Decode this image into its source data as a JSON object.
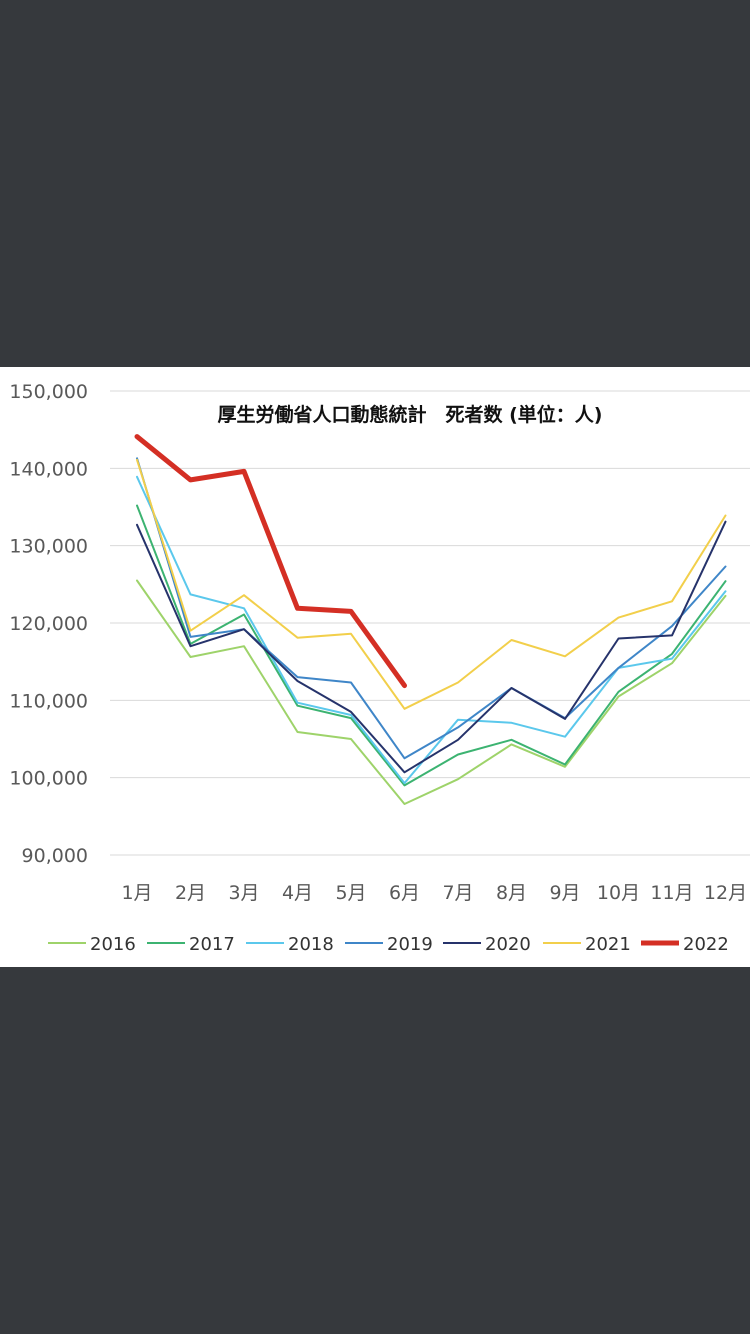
{
  "chart_data": {
    "type": "line",
    "title": "厚生労働省人口動態統計　死者数 (単位：人)",
    "categories": [
      "1月",
      "2月",
      "3月",
      "4月",
      "5月",
      "6月",
      "7月",
      "8月",
      "9月",
      "10月",
      "11月",
      "12月"
    ],
    "y_tick_labels": [
      "150,000",
      "140,000",
      "130,000",
      "120,000",
      "110,000",
      "100,000",
      "90,000"
    ],
    "ylim": [
      90000,
      150000
    ],
    "grid": true,
    "legend_position": "bottom",
    "series": [
      {
        "name": "2016",
        "color": "#9ed36a",
        "width": 2,
        "values": [
          125500,
          115600,
          117000,
          105900,
          105000,
          96600,
          99800,
          104300,
          101400,
          110500,
          114800,
          123500
        ]
      },
      {
        "name": "2017",
        "color": "#3cb371",
        "width": 2,
        "values": [
          135200,
          117300,
          121100,
          109300,
          107700,
          99000,
          103000,
          104900,
          101700,
          111100,
          116000,
          125400
        ]
      },
      {
        "name": "2018",
        "color": "#5bc8ec",
        "width": 2,
        "values": [
          138900,
          123700,
          121900,
          109700,
          108100,
          99300,
          107500,
          107100,
          105300,
          114200,
          115400,
          124100
        ]
      },
      {
        "name": "2019",
        "color": "#3f86c8",
        "width": 2,
        "values": [
          141300,
          118200,
          119200,
          113000,
          112300,
          102500,
          106500,
          111600,
          107700,
          114200,
          119600,
          127300
        ]
      },
      {
        "name": "2020",
        "color": "#26336b",
        "width": 2,
        "values": [
          132700,
          117000,
          119200,
          112500,
          108500,
          100700,
          104900,
          111600,
          107600,
          118000,
          118400,
          133100
        ]
      },
      {
        "name": "2021",
        "color": "#f2cf4b",
        "width": 2,
        "values": [
          141100,
          119000,
          123600,
          118100,
          118600,
          108900,
          112300,
          117800,
          115700,
          120700,
          122800,
          133900
        ]
      },
      {
        "name": "2022",
        "color": "#d42f24",
        "width": 5,
        "values": [
          144100,
          138500,
          139600,
          121900,
          121500,
          111900,
          null,
          null,
          null,
          null,
          null,
          null
        ]
      }
    ]
  }
}
